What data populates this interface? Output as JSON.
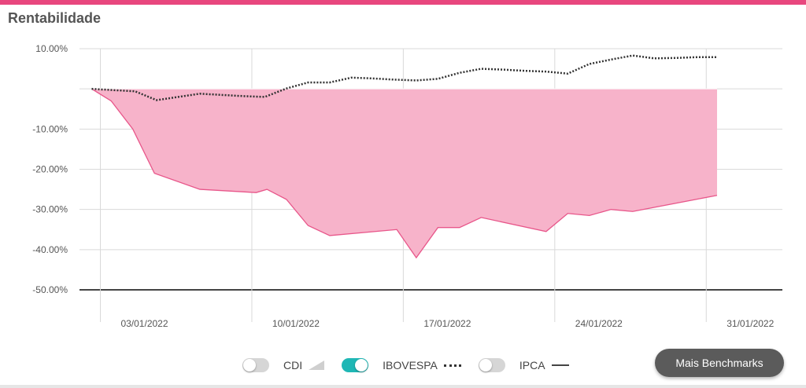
{
  "title": "Rentabilidade",
  "colors": {
    "accent": "#e8477e",
    "area_fill": "#f7b3ca",
    "area_stroke": "#e8568a",
    "toggle_on": "#1fb7b5",
    "grid": "#d9d9d9",
    "baseline": "#444444"
  },
  "legend": {
    "items": [
      {
        "label": "CDI",
        "toggled": false,
        "symbol": "area"
      },
      {
        "label": "IBOVESPA",
        "toggled": true,
        "symbol": "dotted-line"
      },
      {
        "label": "IPCA",
        "toggled": false,
        "symbol": "solid-line"
      }
    ]
  },
  "button": {
    "label": "Mais Benchmarks"
  },
  "chart_data": {
    "type": "area",
    "ylim": [
      -50,
      10
    ],
    "y_ticks": [
      "10.00%",
      "-10.00%",
      "-20.00%",
      "-30.00%",
      "-40.00%",
      "-50.00%"
    ],
    "y_tick_values": [
      10,
      -10,
      -20,
      -30,
      -40,
      -50
    ],
    "x_ticks": [
      "03/01/2022",
      "10/01/2022",
      "17/01/2022",
      "24/01/2022",
      "31/01/2022"
    ],
    "x_tick_days": [
      3,
      10,
      17,
      24,
      31
    ],
    "grid": true,
    "series": [
      {
        "kind": "area",
        "x": [
          2.6,
          3.5,
          4.5,
          5.5,
          7.6,
          10.2,
          10.7,
          11.6,
          12.6,
          13.6,
          16.7,
          17.6,
          18.6,
          19.6,
          20.6,
          23.6,
          24.6,
          25.6,
          26.6,
          27.6,
          31.5
        ],
        "y": [
          0,
          -3,
          -10,
          -21,
          -25,
          -25.8,
          -25,
          -27.5,
          -34,
          -36.5,
          -35,
          -42,
          -34.5,
          -34.5,
          -32,
          -35.5,
          -31,
          -31.5,
          -30,
          -30.5,
          -26.5
        ]
      },
      {
        "name": "IBOVESPA",
        "kind": "dotted-line",
        "x": [
          2.6,
          3.6,
          4.6,
          5.6,
          6.6,
          7.6,
          8.6,
          9.6,
          10.6,
          11.6,
          12.6,
          13.6,
          14.6,
          15.6,
          16.6,
          17.6,
          18.6,
          19.6,
          20.6,
          21.6,
          22.6,
          23.6,
          24.6,
          25.6,
          26.6,
          27.6,
          28.6,
          29.6,
          30.6,
          31.5
        ],
        "y": [
          0,
          -0.3,
          -0.6,
          -2.8,
          -2.0,
          -1.2,
          -1.5,
          -1.8,
          -2.0,
          0.1,
          1.6,
          1.6,
          2.8,
          2.6,
          2.3,
          2.1,
          2.5,
          4.0,
          5.0,
          4.8,
          4.5,
          4.3,
          3.8,
          6.2,
          7.3,
          8.3,
          7.6,
          7.7,
          7.9,
          7.9
        ]
      }
    ]
  }
}
